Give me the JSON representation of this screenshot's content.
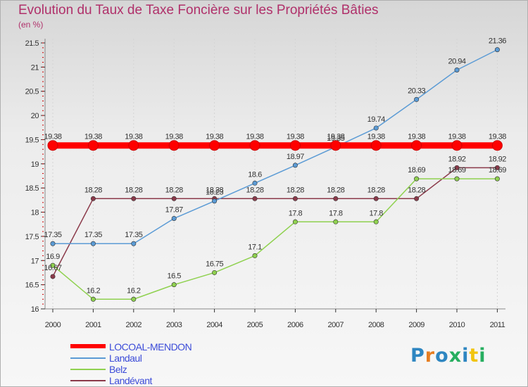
{
  "chart_data": {
    "type": "line",
    "title": "Evolution du Taux de Taxe Foncière sur les Propriétés Bâties",
    "ylabel": "(en %)",
    "xlabel": "",
    "categories": [
      "2000",
      "2001",
      "2002",
      "2003",
      "2004",
      "2005",
      "2006",
      "2007",
      "2008",
      "2009",
      "2010",
      "2011"
    ],
    "ylim": [
      16,
      21.5
    ],
    "yticks": [
      "16",
      "16.5",
      "17",
      "17.5",
      "18",
      "18.5",
      "19",
      "19.5",
      "20",
      "20.5",
      "21",
      "21.5"
    ],
    "series": [
      {
        "name": "LOCOAL-MENDON",
        "color": "#ff0000",
        "values": [
          19.38,
          19.38,
          19.38,
          19.38,
          19.38,
          19.38,
          19.38,
          19.38,
          19.38,
          19.38,
          19.38,
          19.38
        ],
        "labels": [
          "19.38",
          "19.38",
          "19.38",
          "19.38",
          "19.38",
          "19.38",
          "19.38",
          "19.38",
          "19.38",
          "19.38",
          "19.38",
          "19.38"
        ]
      },
      {
        "name": "Landaul",
        "color": "#5b9bd5",
        "values": [
          17.35,
          17.35,
          17.35,
          17.87,
          18.23,
          18.6,
          18.97,
          19.35,
          19.74,
          20.33,
          20.94,
          21.36
        ],
        "labels": [
          "17.35",
          "17.35",
          "17.35",
          "17.87",
          "18.23",
          "18.6",
          "18.97",
          "19.35",
          "19.74",
          "20.33",
          "20.94",
          "21.36"
        ]
      },
      {
        "name": "Belz",
        "color": "#8fd14f",
        "values": [
          16.9,
          16.2,
          16.2,
          16.5,
          16.75,
          17.1,
          17.8,
          17.8,
          17.8,
          18.69,
          18.69,
          18.69
        ],
        "labels": [
          "16.9",
          "16.2",
          "16.2",
          "16.5",
          "16.75",
          "17.1",
          "17.8",
          "17.8",
          "17.8",
          "18.69",
          "18.69",
          "18.69"
        ]
      },
      {
        "name": "Landévant",
        "color": "#8b3a4a",
        "values": [
          16.67,
          18.28,
          18.28,
          18.28,
          18.28,
          18.28,
          18.28,
          18.28,
          18.28,
          18.28,
          18.92,
          18.92
        ],
        "labels": [
          "16.67",
          "18.28",
          "18.28",
          "18.28",
          "18.28",
          "18.28",
          "18.28",
          "18.28",
          "18.28",
          "18.28",
          "18.92",
          "18.92"
        ]
      }
    ]
  },
  "logo": {
    "letters": [
      "P",
      "r",
      "o",
      "x",
      "i",
      "t",
      "i"
    ],
    "colors": [
      "#2e86c1",
      "#e67e22",
      "#2e86c1",
      "#27ae60",
      "#2e86c1",
      "#f1c40f",
      "#27ae60"
    ]
  }
}
